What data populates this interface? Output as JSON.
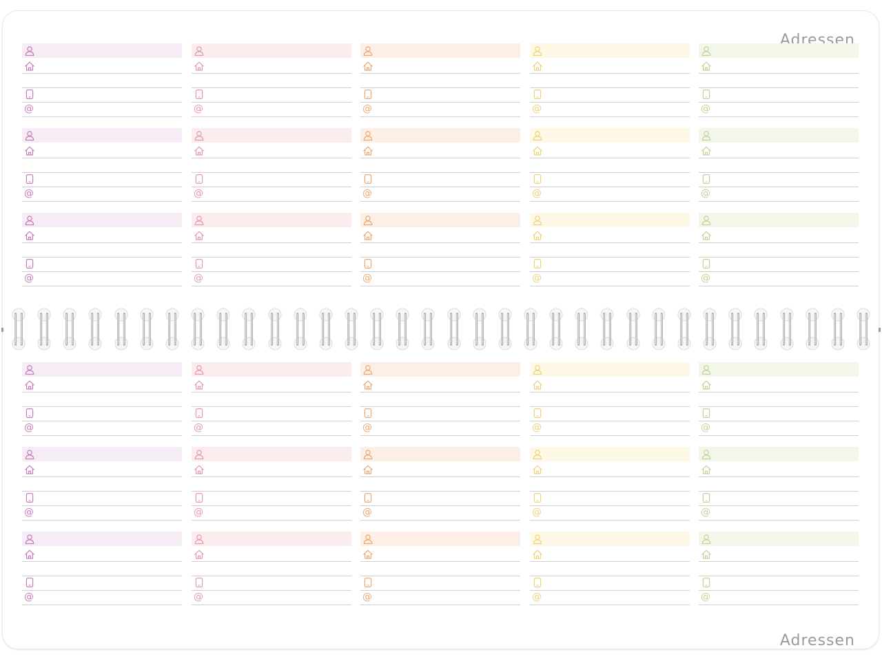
{
  "title_top": "Adressen",
  "title_bottom": "Adressen",
  "email_symbol": "@",
  "icons": [
    "person-icon",
    "home-icon",
    "mobile-phone-icon",
    "at-icon"
  ],
  "columns": [
    {
      "name": "purple",
      "band": "#f5ecf5",
      "icon": "#c77dbc"
    },
    {
      "name": "pink",
      "band": "#fbecee",
      "icon": "#e699aa"
    },
    {
      "name": "peach",
      "band": "#fdefe6",
      "icon": "#eda86f"
    },
    {
      "name": "yellow",
      "band": "#fdf9e6",
      "icon": "#efd27a"
    },
    {
      "name": "green",
      "band": "#f3f7ea",
      "icon": "#bfd496"
    }
  ],
  "entries_per_column_per_half": 3
}
